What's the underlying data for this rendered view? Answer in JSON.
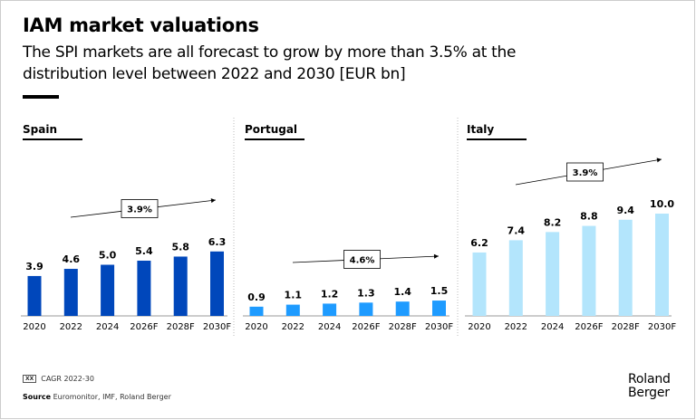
{
  "title": "IAM market valuations",
  "subtitle": "The SPI markets are all forecast to grow by more than 3.5% at the distribution level between 2022 and 2030 [EUR bn]",
  "legend": {
    "box": "XX",
    "label": "CAGR 2022-30"
  },
  "source": {
    "label": "Source",
    "text": "Euromonitor, IMF, Roland Berger"
  },
  "logo": {
    "line1": "Roland",
    "line2": "Berger"
  },
  "chart_data": [
    {
      "type": "bar",
      "title": "Spain",
      "categories": [
        "2020",
        "2022",
        "2024",
        "2026F",
        "2028F",
        "2030F"
      ],
      "values": [
        3.9,
        4.6,
        5.0,
        5.4,
        5.8,
        6.3
      ],
      "cagr": "3.9%",
      "color": "#0047BB"
    },
    {
      "type": "bar",
      "title": "Portugal",
      "categories": [
        "2020",
        "2022",
        "2024",
        "2026F",
        "2028F",
        "2030F"
      ],
      "values": [
        0.9,
        1.1,
        1.2,
        1.3,
        1.4,
        1.5
      ],
      "cagr": "4.6%",
      "color": "#1E9BFF"
    },
    {
      "type": "bar",
      "title": "Italy",
      "categories": [
        "2020",
        "2022",
        "2024",
        "2026F",
        "2028F",
        "2030F"
      ],
      "values": [
        6.2,
        7.4,
        8.2,
        8.8,
        9.4,
        10.0
      ],
      "cagr": "3.9%",
      "color": "#B3E5FC"
    }
  ]
}
